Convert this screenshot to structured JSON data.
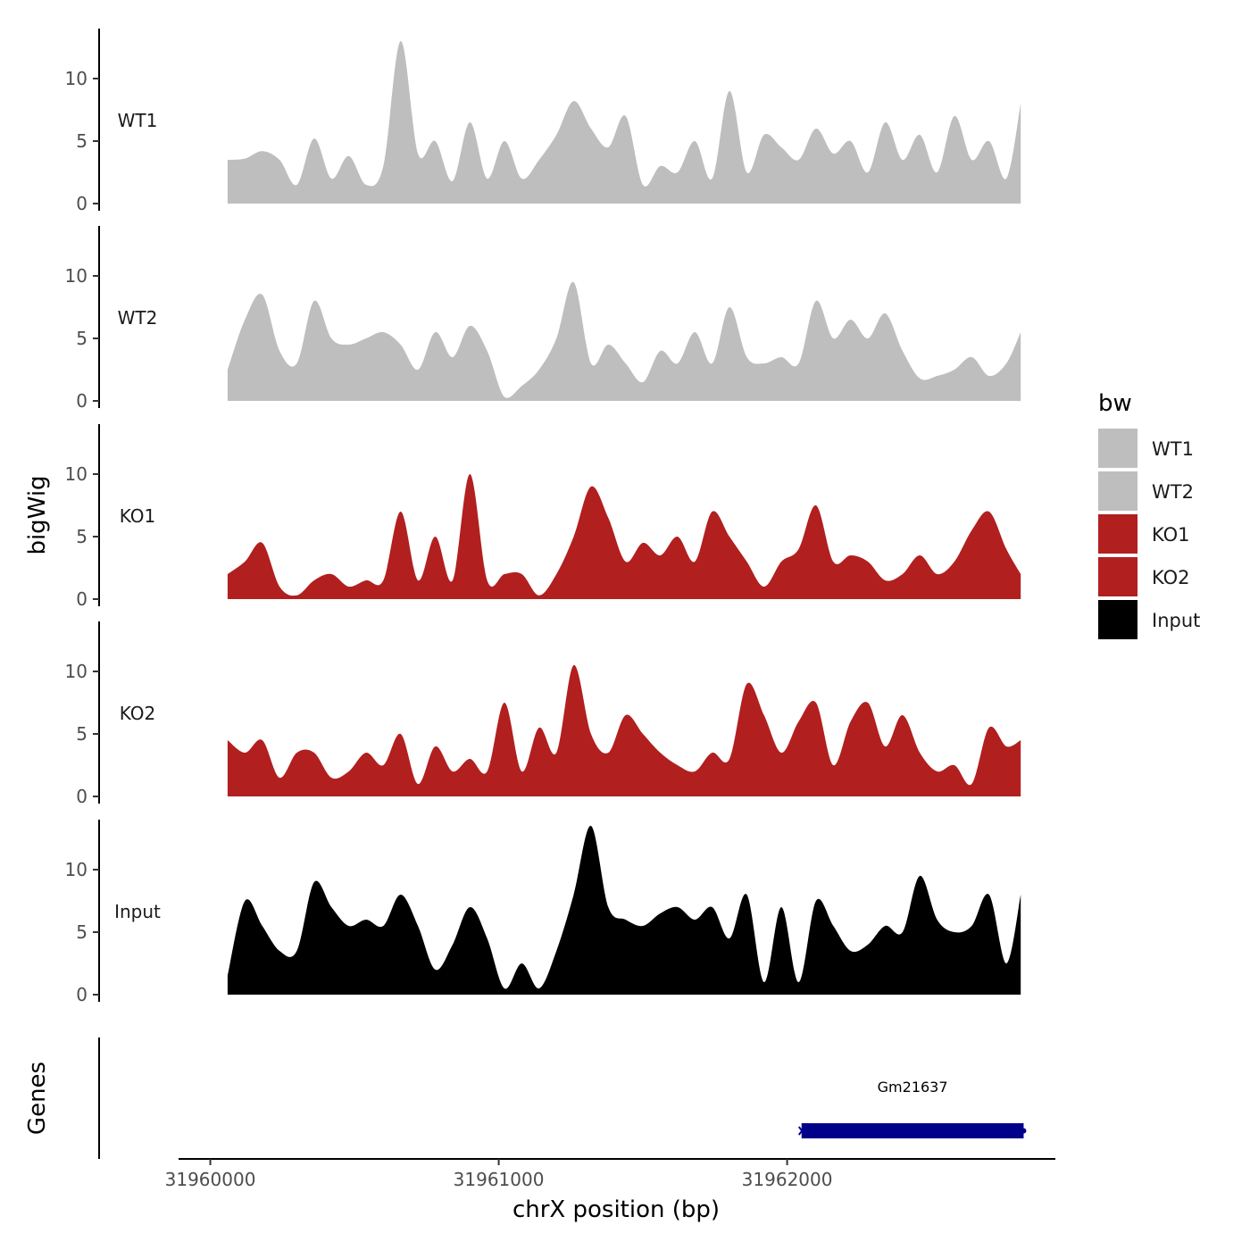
{
  "chart_data": {
    "type": "area",
    "title": "",
    "xlabel": "chrX position (bp)",
    "ylabel": "bigWig",
    "genes_label": "Genes",
    "xlim": [
      31959890,
      31962930
    ],
    "x_ticks": [
      31960000,
      31961000,
      31962000
    ],
    "x_tick_labels": [
      "31960000",
      "31961000",
      "31962000"
    ],
    "ylim": [
      0,
      14
    ],
    "y_ticks": [
      0,
      5,
      10
    ],
    "y_tick_labels": [
      "0",
      "5",
      "10"
    ],
    "legend": {
      "title": "bw",
      "position": "right",
      "items": [
        {
          "name": "WT1",
          "color": "#bebebe"
        },
        {
          "name": "WT2",
          "color": "#bebebe"
        },
        {
          "name": "KO1",
          "color": "#b21f1f"
        },
        {
          "name": "KO2",
          "color": "#b21f1f"
        },
        {
          "name": "Input",
          "color": "#000000"
        }
      ]
    },
    "x": [
      31960060,
      31960120,
      31960180,
      31960240,
      31960300,
      31960360,
      31960420,
      31960480,
      31960540,
      31960600,
      31960660,
      31960720,
      31960780,
      31960840,
      31960900,
      31960960,
      31961020,
      31961080,
      31961140,
      31961200,
      31961260,
      31961320,
      31961380,
      31961440,
      31961500,
      31961560,
      31961620,
      31961680,
      31961740,
      31961800,
      31961860,
      31961920,
      31961980,
      31962040,
      31962100,
      31962160,
      31962220,
      31962280,
      31962340,
      31962400,
      31962460,
      31962520,
      31962580,
      31962640,
      31962700,
      31962760,
      31962810
    ],
    "series": [
      {
        "name": "WT1",
        "color": "#bebebe",
        "values": [
          3.5,
          3.6,
          4.2,
          3.5,
          1.5,
          5.2,
          2.0,
          3.8,
          1.5,
          3.0,
          13.0,
          4.0,
          5.0,
          1.8,
          6.5,
          2.0,
          5.0,
          2.0,
          3.5,
          5.5,
          8.2,
          6.0,
          4.5,
          7.0,
          1.5,
          3.0,
          2.5,
          5.0,
          2.0,
          9.0,
          2.5,
          5.5,
          4.5,
          3.5,
          6.0,
          4.0,
          5.0,
          2.5,
          6.5,
          3.5,
          5.5,
          2.5,
          7.0,
          3.5,
          5.0,
          2.0,
          8.0
        ]
      },
      {
        "name": "WT2",
        "color": "#bebebe",
        "values": [
          2.5,
          6.5,
          8.5,
          4.0,
          3.0,
          8.0,
          5.0,
          4.5,
          5.0,
          5.5,
          4.5,
          2.5,
          5.5,
          3.5,
          6.0,
          4.0,
          0.3,
          1.2,
          2.5,
          5.0,
          9.5,
          3.0,
          4.5,
          3.0,
          1.5,
          4.0,
          3.0,
          5.5,
          3.0,
          7.5,
          3.5,
          3.0,
          3.5,
          3.0,
          8.0,
          5.0,
          6.5,
          5.0,
          7.0,
          4.0,
          1.8,
          2.0,
          2.5,
          3.5,
          2.0,
          3.0,
          5.5
        ]
      },
      {
        "name": "KO1",
        "color": "#b21f1f",
        "values": [
          2.0,
          3.0,
          4.5,
          1.0,
          0.3,
          1.5,
          2.0,
          1.0,
          1.5,
          1.5,
          7.0,
          1.5,
          5.0,
          1.5,
          10.0,
          1.5,
          2.0,
          2.0,
          0.3,
          2.0,
          5.0,
          9.0,
          6.5,
          3.0,
          4.5,
          3.5,
          5.0,
          3.0,
          7.0,
          5.0,
          3.0,
          1.0,
          3.0,
          4.0,
          7.5,
          3.0,
          3.5,
          3.0,
          1.5,
          2.0,
          3.5,
          2.0,
          3.0,
          5.5,
          7.0,
          4.0,
          2.0
        ]
      },
      {
        "name": "KO2",
        "color": "#b21f1f",
        "values": [
          4.5,
          3.5,
          4.5,
          1.5,
          3.5,
          3.5,
          1.5,
          2.0,
          3.5,
          2.5,
          5.0,
          1.0,
          4.0,
          2.0,
          3.0,
          2.0,
          7.5,
          2.0,
          5.5,
          3.5,
          10.5,
          5.0,
          3.5,
          6.5,
          5.0,
          3.5,
          2.5,
          2.0,
          3.5,
          3.0,
          9.0,
          6.5,
          3.5,
          6.0,
          7.5,
          2.5,
          6.0,
          7.5,
          4.0,
          6.5,
          3.5,
          2.0,
          2.5,
          1.0,
          5.5,
          4.0,
          4.5
        ]
      },
      {
        "name": "Input",
        "color": "#000000",
        "values": [
          1.5,
          7.5,
          5.5,
          3.5,
          3.5,
          9.0,
          7.0,
          5.5,
          6.0,
          5.5,
          8.0,
          5.5,
          2.0,
          4.0,
          7.0,
          4.5,
          0.5,
          2.5,
          0.5,
          3.5,
          8.0,
          13.5,
          7.0,
          6.0,
          5.5,
          6.5,
          7.0,
          6.0,
          7.0,
          4.5,
          8.0,
          1.0,
          7.0,
          1.0,
          7.5,
          5.5,
          3.5,
          4.0,
          5.5,
          5.0,
          9.5,
          6.0,
          5.0,
          5.5,
          8.0,
          2.5,
          8.0
        ]
      }
    ],
    "genes": [
      {
        "name": "Gm21637",
        "start": 31962050,
        "end": 31962820,
        "strand": "-",
        "color": "#00008b"
      }
    ]
  }
}
